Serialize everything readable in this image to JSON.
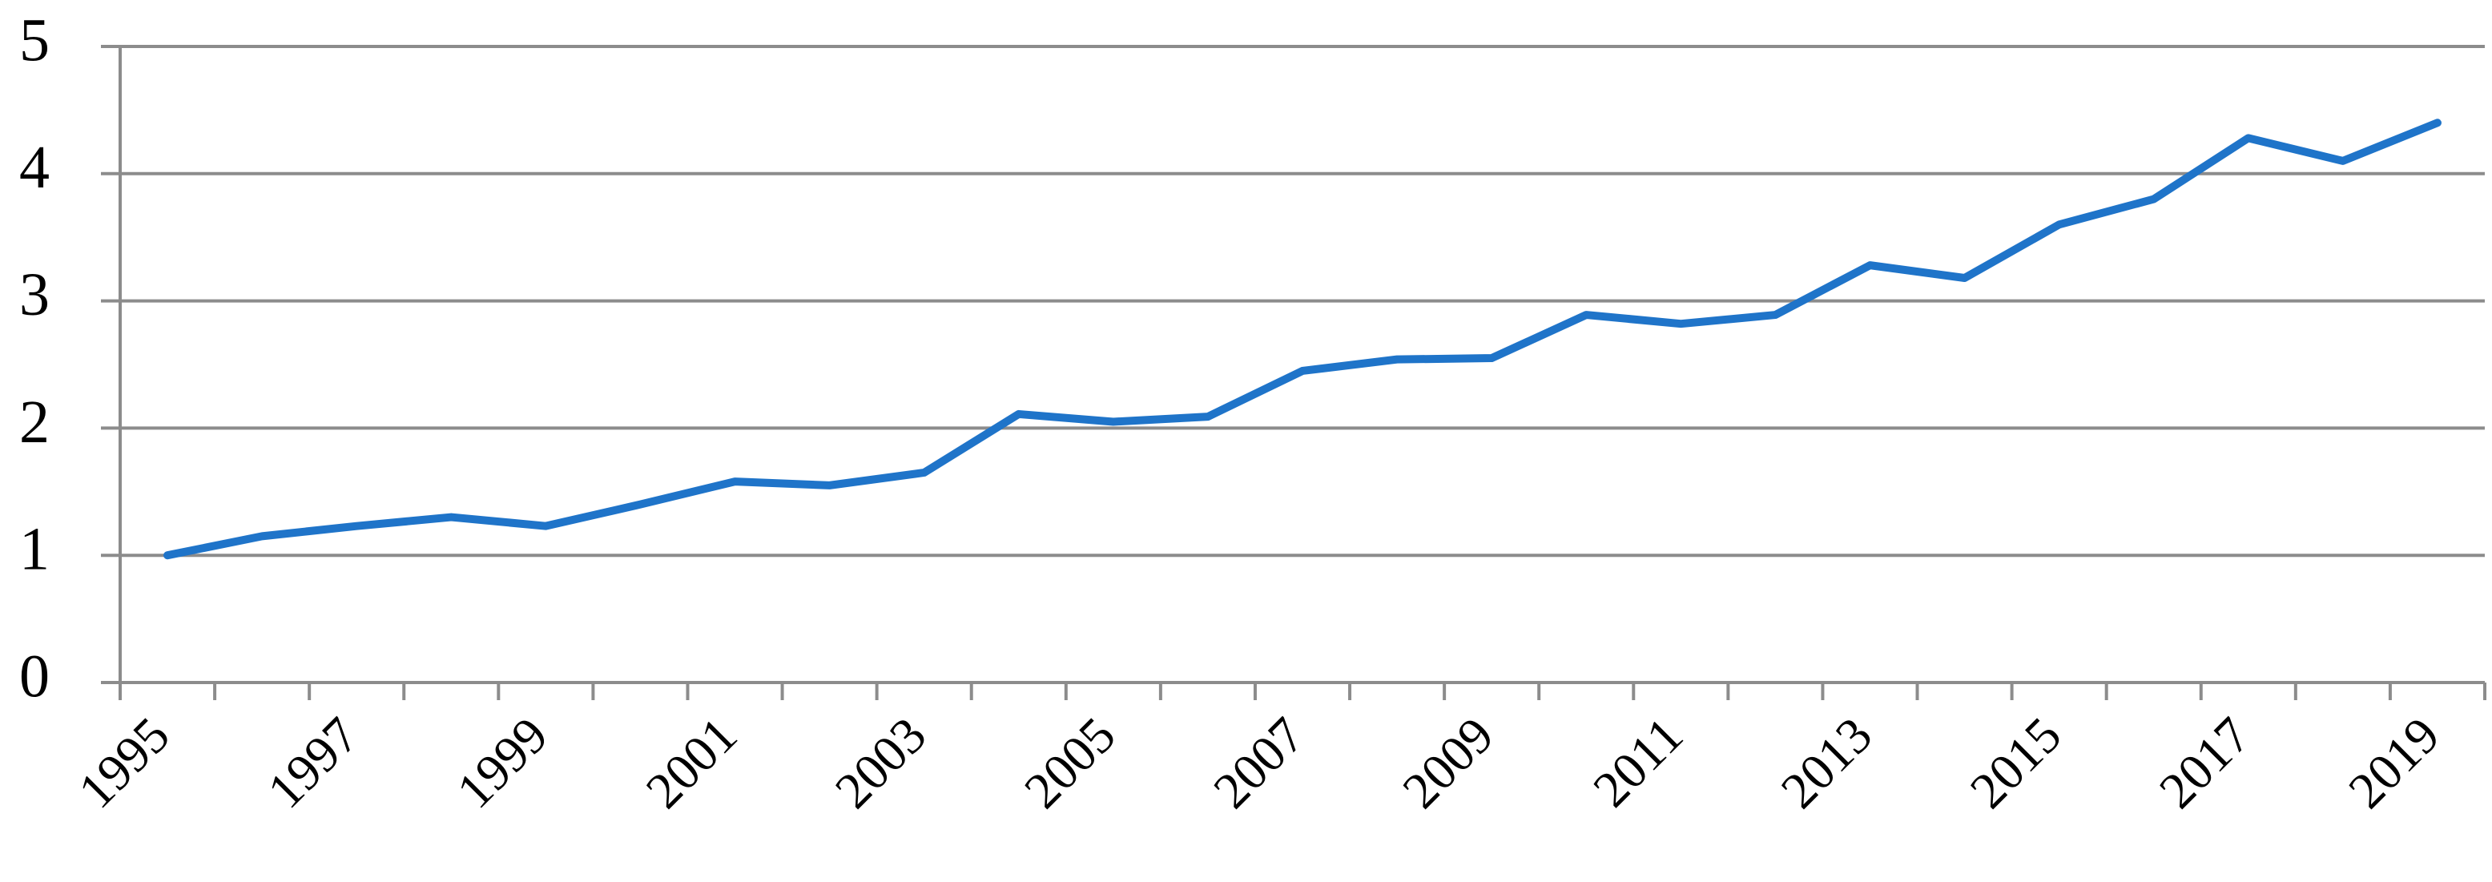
{
  "chart_data": {
    "type": "line",
    "categories": [
      "1995",
      null,
      "1997",
      null,
      "1999",
      null,
      "2001",
      null,
      "2003",
      null,
      "2005",
      null,
      "2007",
      null,
      "2009",
      null,
      "2011",
      null,
      "2013",
      null,
      "2015",
      null,
      "2017",
      null,
      "2019"
    ],
    "series": [
      {
        "color": "#1f74c9",
        "values": [
          1.0,
          1.15,
          1.23,
          1.3,
          1.23,
          1.4,
          1.58,
          1.55,
          1.65,
          2.11,
          2.05,
          2.09,
          2.45,
          2.54,
          2.55,
          2.89,
          2.82,
          2.89,
          3.28,
          3.18,
          3.6,
          3.8,
          4.28,
          4.1,
          4.4
        ]
      }
    ],
    "ylim": [
      0,
      5
    ],
    "yticks": [
      0,
      1,
      2,
      3,
      4,
      5
    ],
    "grid": true
  }
}
